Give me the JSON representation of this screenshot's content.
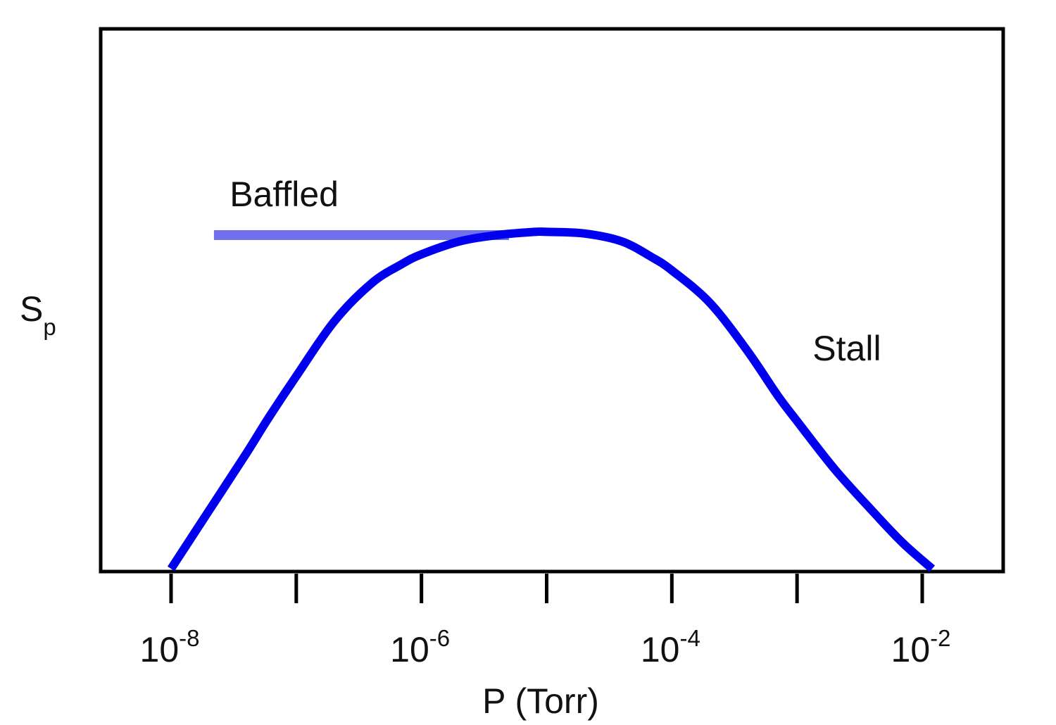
{
  "chart_data": {
    "type": "line",
    "title": "",
    "xlabel": "P (Torr)",
    "ylabel": {
      "main": "S",
      "sub": "p"
    },
    "x_scale": "log",
    "xlim": [
      3e-09,
      0.05
    ],
    "x_major_ticks": [
      1e-08,
      1e-07,
      1e-06,
      1e-05,
      0.0001,
      0.001,
      0.01
    ],
    "x_tick_labels": [
      {
        "value": 1e-08,
        "base": "10",
        "exp": "-8"
      },
      {
        "value": 1e-06,
        "base": "10",
        "exp": "-6"
      },
      {
        "value": 0.0001,
        "base": "10",
        "exp": "-4"
      },
      {
        "value": 0.01,
        "base": "10",
        "exp": "-2"
      }
    ],
    "y_axis": "unlabeled, relative pumping speed",
    "ylim": [
      0,
      1.6
    ],
    "grid": false,
    "series": [
      {
        "name": "",
        "color": "#0000ee",
        "points": [
          [
            1e-08,
            0.0
          ],
          [
            2e-08,
            0.18
          ],
          [
            4e-08,
            0.36
          ],
          [
            6e-08,
            0.47
          ],
          [
            1e-07,
            0.6
          ],
          [
            2e-07,
            0.77
          ],
          [
            4e-07,
            0.89
          ],
          [
            7e-07,
            0.95
          ],
          [
            1e-06,
            0.98
          ],
          [
            2e-06,
            1.02
          ],
          [
            4e-06,
            1.04
          ],
          [
            8e-06,
            1.05
          ],
          [
            1e-05,
            1.05
          ],
          [
            2e-05,
            1.045
          ],
          [
            4e-05,
            1.02
          ],
          [
            7e-05,
            0.97
          ],
          [
            0.0001,
            0.93
          ],
          [
            0.0002,
            0.83
          ],
          [
            0.0004,
            0.68
          ],
          [
            0.0007,
            0.54
          ],
          [
            0.001,
            0.46
          ],
          [
            0.002,
            0.31
          ],
          [
            0.004,
            0.18
          ],
          [
            0.007,
            0.08
          ],
          [
            0.012,
            0.0
          ]
        ]
      },
      {
        "name": "",
        "color": "#7070ee",
        "points": [
          [
            2.2e-08,
            1.04
          ],
          [
            5e-06,
            1.04
          ]
        ]
      }
    ],
    "annotations": [
      {
        "text": "Baffled",
        "x": 8e-08,
        "y": 1.13,
        "anchor": "middle"
      },
      {
        "text": "Stall",
        "x": 0.0025,
        "y": 0.65,
        "anchor": "middle"
      }
    ]
  }
}
